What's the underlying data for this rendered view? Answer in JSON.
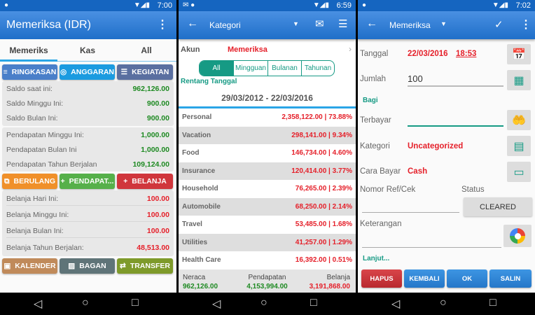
{
  "screens": [
    {
      "status": {
        "time": "7:00"
      },
      "appbar": {
        "title": "Memeriksa (IDR)"
      },
      "tabs": [
        {
          "label": "Memeriks"
        },
        {
          "label": "Kas"
        },
        {
          "label": "All"
        }
      ],
      "buttons_top": [
        {
          "label": "RINGKASAN",
          "icon": "sort-icon",
          "color": "#4a7fc9"
        },
        {
          "label": "ANGGARAN",
          "icon": "target-icon",
          "color": "#1b9be0"
        },
        {
          "label": "KEGIATAN",
          "icon": "list-icon",
          "color": "#5a6fa0"
        }
      ],
      "saldo": [
        {
          "label": "Saldo saat ini:",
          "value": "962,126.00"
        },
        {
          "label": "Saldo Minggu Ini:",
          "value": "900.00"
        },
        {
          "label": "Saldo Bulan Ini:",
          "value": "900.00"
        }
      ],
      "pendapatan": [
        {
          "label": "Pendapatan Minggu Ini:",
          "value": "1,000.00"
        },
        {
          "label": "Pendapatan Bulan Ini",
          "value": "1,000.00"
        },
        {
          "label": "Pendapatan Tahun Berjalan",
          "value": "109,124.00"
        }
      ],
      "buttons_mid": [
        {
          "label": "BERULANG",
          "icon": "recurring-icon",
          "color": "#f0902a"
        },
        {
          "label": "PENDAPAT...",
          "icon": "plus-icon",
          "color": "#56b04a"
        },
        {
          "label": "BELANJA",
          "icon": "plus-icon",
          "color": "#d0363c"
        }
      ],
      "belanja": [
        {
          "label": "Belanja Hari Ini:",
          "value": "100.00"
        },
        {
          "label": "Belanja Minggu Ini:",
          "value": "100.00"
        },
        {
          "label": "Belanja Bulan Ini:",
          "value": "100.00"
        },
        {
          "label": "Belanja Tahun Berjalan:",
          "value": "48,513.00"
        }
      ],
      "buttons_bottom": [
        {
          "label": "KALENDER",
          "icon": "calendar-icon",
          "color": "#c08a5a"
        },
        {
          "label": "BAGAN",
          "icon": "image-icon",
          "color": "#5f7478"
        },
        {
          "label": "TRANSFER",
          "icon": "swap-icon",
          "color": "#7e9a2a"
        }
      ]
    },
    {
      "status": {
        "time": "6:59"
      },
      "appbar": {
        "title": "Kategori"
      },
      "akun": {
        "label": "Akun",
        "value": "Memeriksa"
      },
      "segments": [
        {
          "label": "All",
          "selected": true
        },
        {
          "label": "Mingguan"
        },
        {
          "label": "Bulanan"
        },
        {
          "label": "Tahunan"
        }
      ],
      "range_label": "Rentang Tanggal",
      "range": "29/03/2012 - 22/03/2016",
      "categories": [
        {
          "name": "Personal",
          "value": "2,358,122.00 | 73.88%"
        },
        {
          "name": "Vacation",
          "value": "298,141.00 | 9.34%"
        },
        {
          "name": "Food",
          "value": "146,734.00 | 4.60%"
        },
        {
          "name": "Insurance",
          "value": "120,414.00 | 3.77%"
        },
        {
          "name": "Household",
          "value": "76,265.00 | 2.39%"
        },
        {
          "name": "Automobile",
          "value": "68,250.00 | 2.14%"
        },
        {
          "name": "Travel",
          "value": "53,485.00 | 1.68%"
        },
        {
          "name": "Utilities",
          "value": "41,257.00 | 1.29%"
        },
        {
          "name": "Health Care",
          "value": "16,392.00 | 0.51%"
        }
      ],
      "footer": {
        "neraca_label": "Neraca",
        "neraca": "962,126.00",
        "pendapatan_label": "Pendapatan",
        "pendapatan": "4,153,994.00",
        "belanja_label": "Belanja",
        "belanja": "3,191,868.00"
      }
    },
    {
      "status": {
        "time": "7:02"
      },
      "appbar": {
        "title": "Memeriksa"
      },
      "form": {
        "tanggal_label": "Tanggal",
        "date": "22/03/2016",
        "time": "18:53",
        "jumlah_label": "Jumlah",
        "jumlah": "100",
        "bagi": "Bagi",
        "terbayar_label": "Terbayar",
        "terbayar": "",
        "kategori_label": "Kategori",
        "kategori": "Uncategorized",
        "cara_label": "Cara Bayar",
        "cara": "Cash",
        "ref_label": "Nomor Ref/Cek",
        "ref": "",
        "status_label": "Status",
        "status": "CLEARED",
        "ket_label": "Keterangan",
        "ket": "",
        "lanjut": "Lanjut..."
      },
      "actions": [
        {
          "label": "HAPUS",
          "color": "#c9343a"
        },
        {
          "label": "KEMBALI",
          "color": "#2f86d8"
        },
        {
          "label": "OK",
          "color": "#2f86d8"
        },
        {
          "label": "SALIN",
          "color": "#2f86d8"
        }
      ]
    }
  ],
  "colors": {
    "primary": "#1f6fc9",
    "teal": "#169a84",
    "income": "#1e8a22",
    "expense": "#e5202a"
  }
}
